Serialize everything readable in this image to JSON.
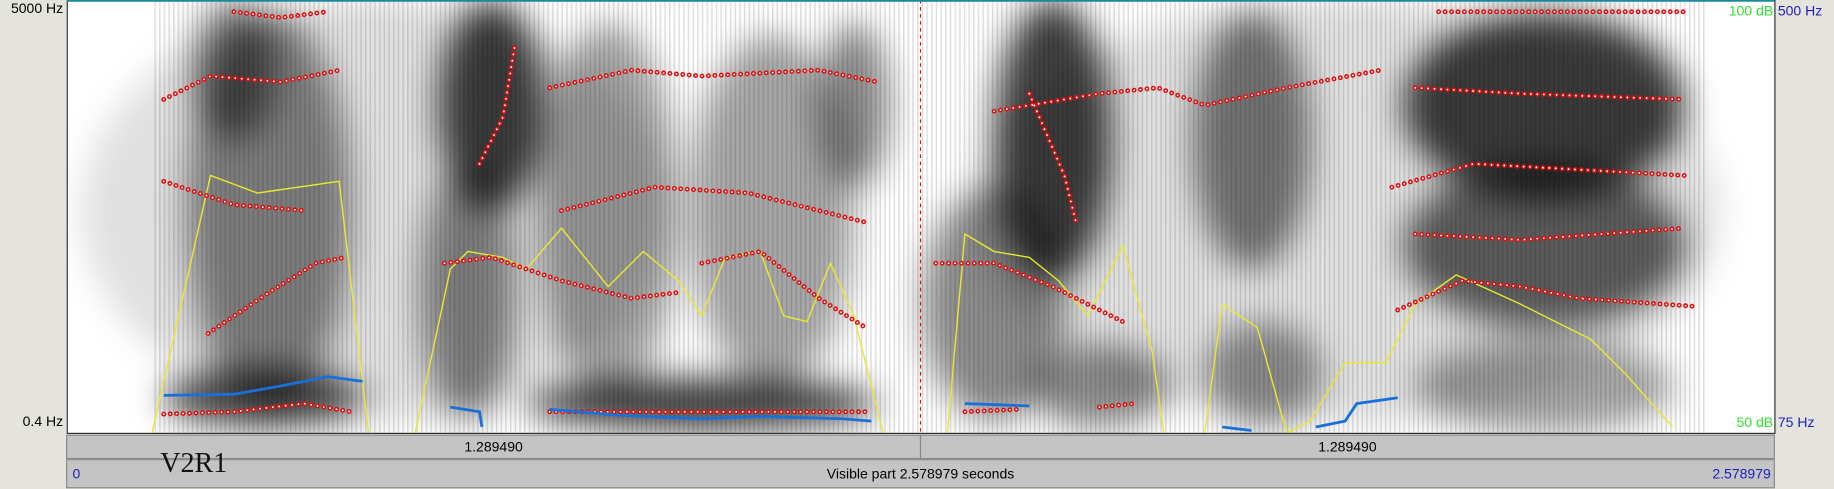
{
  "left_axis": {
    "top": "5000 Hz",
    "bottom": "0.4 Hz"
  },
  "right_axis": {
    "intensity_top": "100 dB",
    "pitch_top": "500 Hz",
    "intensity_bottom": "50 dB",
    "pitch_bottom": "75 Hz"
  },
  "time_bar": {
    "left_half": "1.289490",
    "right_half": "1.289490"
  },
  "label": "V2R1",
  "bottom_bar": {
    "start": "0",
    "visible": "Visible part 2.578979 seconds",
    "end": "2.578979"
  }
}
